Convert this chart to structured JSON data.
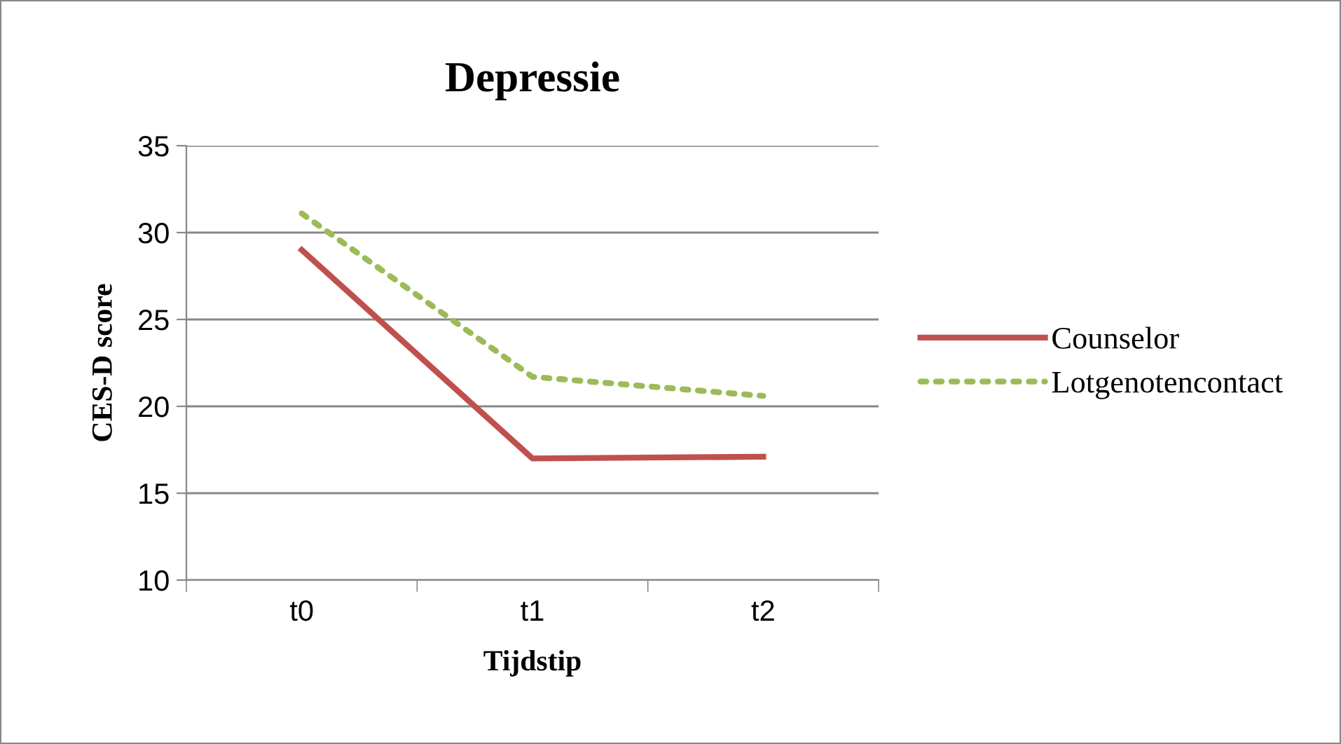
{
  "chart_data": {
    "type": "line",
    "title": "Depressie",
    "xlabel": "Tijdstip",
    "ylabel": "CES-D score",
    "categories": [
      "t0",
      "t1",
      "t2"
    ],
    "series": [
      {
        "name": "Counselor",
        "color": "#c0504d",
        "values": [
          29,
          17,
          17.1
        ],
        "line_style": "solid"
      },
      {
        "name": "Lotgenotencontact",
        "color": "#9bbb59",
        "values": [
          31.1,
          21.7,
          20.6
        ],
        "line_style": "dotted"
      }
    ],
    "ylim": [
      10,
      35
    ],
    "yticks": [
      10,
      15,
      20,
      25,
      30,
      35
    ],
    "grid": "y",
    "legend": "right",
    "marker": "none"
  }
}
